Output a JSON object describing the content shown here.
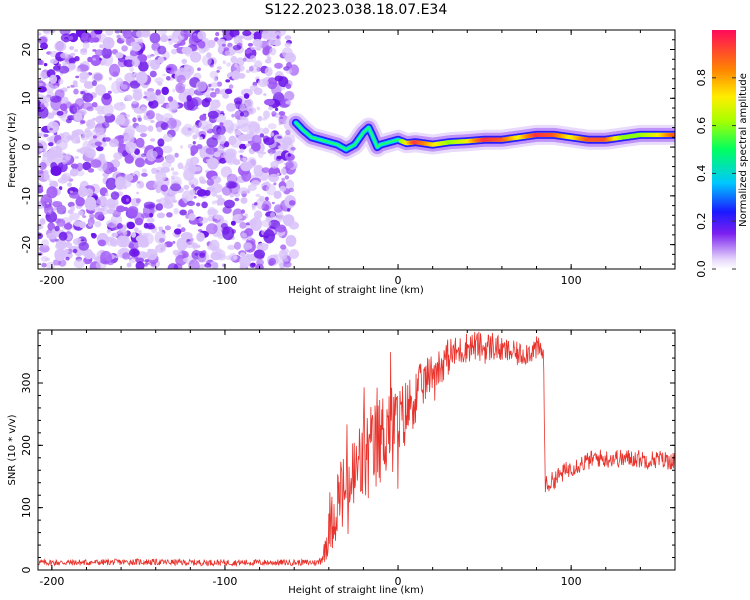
{
  "title": "S122.2023.038.18.07.E34",
  "chart_data": [
    {
      "type": "heatmap",
      "xlabel": "Height of straight line (km)",
      "ylabel": "Frequency (Hz)",
      "xlim": [
        -208,
        160
      ],
      "ylim": [
        -25,
        24
      ],
      "xticks": [
        -200,
        -100,
        0,
        100
      ],
      "yticks": [
        -20,
        -10,
        0,
        10,
        20
      ],
      "noise_region_x": [
        -208,
        -60
      ],
      "ridge": {
        "description_values": "frequency ridge (Hz) vs height (km); amplitude 0-1",
        "x": [
          -59,
          -55,
          -50,
          -45,
          -40,
          -35,
          -30,
          -25,
          -20,
          -17,
          -15,
          -12,
          -10,
          -5,
          0,
          5,
          10,
          20,
          30,
          40,
          50,
          60,
          70,
          80,
          90,
          100,
          110,
          120,
          130,
          140,
          150,
          160
        ],
        "frequency": [
          5,
          3.5,
          2,
          1.5,
          1,
          0.5,
          -0.5,
          0.5,
          3,
          4,
          2.5,
          0,
          0.5,
          1,
          1.5,
          0.8,
          1,
          0.5,
          1,
          1.2,
          1.5,
          1.5,
          2,
          2.5,
          2.5,
          2,
          1.5,
          1.5,
          2,
          2.5,
          2.5,
          2.5
        ],
        "amplitude": [
          0.3,
          0.3,
          0.35,
          0.35,
          0.4,
          0.4,
          0.35,
          0.3,
          0.4,
          0.45,
          0.4,
          0.4,
          0.45,
          0.5,
          0.55,
          0.7,
          0.95,
          0.75,
          0.6,
          0.7,
          0.95,
          0.9,
          0.7,
          0.95,
          0.9,
          0.7,
          0.9,
          0.9,
          0.6,
          0.6,
          0.7,
          0.9
        ]
      },
      "colorbar": {
        "label": "Normalized spectral amplitude",
        "range": [
          0,
          1
        ],
        "ticks": [
          "0.0",
          "0.2",
          "0.4",
          "0.6",
          "0.8"
        ]
      }
    },
    {
      "type": "line",
      "xlabel": "Height of straight line (km)",
      "ylabel": "SNR (10 * v/v)",
      "xlim": [
        -208,
        160
      ],
      "ylim": [
        0,
        385
      ],
      "xticks": [
        -200,
        -100,
        0,
        100
      ],
      "yticks": [
        0,
        100,
        200,
        300
      ],
      "color": "#e8322b",
      "series": [
        {
          "name": "",
          "x": [
            -208,
            -180,
            -150,
            -120,
            -90,
            -60,
            -46,
            -43,
            -40,
            -35,
            -30,
            -25,
            -20,
            -15,
            -10,
            -5,
            0,
            5,
            10,
            15,
            20,
            25,
            30,
            35,
            40,
            45,
            50,
            55,
            60,
            65,
            70,
            75,
            80,
            84,
            85,
            86,
            90,
            95,
            100,
            105,
            110,
            115,
            120,
            125,
            130,
            135,
            140,
            145,
            150,
            155,
            160
          ],
          "y": [
            12,
            12,
            13,
            12,
            12,
            12,
            12,
            25,
            60,
            110,
            130,
            150,
            180,
            185,
            210,
            240,
            230,
            255,
            280,
            300,
            320,
            330,
            345,
            350,
            358,
            360,
            355,
            360,
            352,
            350,
            345,
            350,
            355,
            350,
            140,
            135,
            145,
            155,
            165,
            170,
            175,
            180,
            178,
            180,
            178,
            180,
            178,
            177,
            178,
            176,
            175
          ],
          "noise_amplitude": [
            5,
            5,
            5,
            5,
            5,
            5,
            5,
            15,
            40,
            70,
            70,
            80,
            90,
            90,
            80,
            80,
            70,
            60,
            50,
            40,
            35,
            30,
            30,
            25,
            25,
            25,
            25,
            25,
            20,
            20,
            20,
            20,
            20,
            20,
            15,
            15,
            15,
            15,
            15,
            15,
            15,
            15,
            15,
            15,
            15,
            15,
            15,
            15,
            15,
            15,
            15
          ]
        }
      ]
    }
  ]
}
